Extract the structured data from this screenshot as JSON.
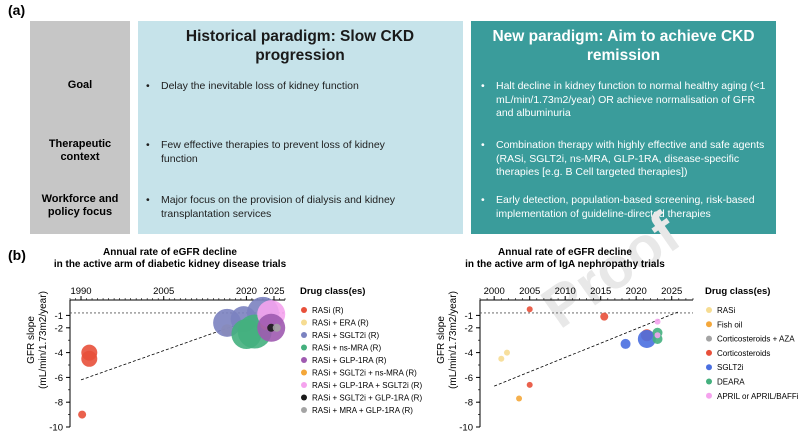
{
  "panel_a": {
    "label": "(a)",
    "historical_header": "Historical paradigm: Slow CKD progression",
    "new_header": "New paradigm: Aim to achieve CKD remission",
    "rows": [
      {
        "label": "Goal",
        "historical": "Delay the inevitable loss of kidney function",
        "new": "Halt decline in kidney function to normal healthy aging (<1 mL/min/1.73m2/year) OR achieve normalisation of GFR and albuminuria"
      },
      {
        "label": "Therapeutic context",
        "historical": "Few effective therapies to prevent loss of kidney function",
        "new": "Combination therapy with highly effective and safe agents (RASi, SGLT2i, ns-MRA, GLP-1RA, disease-specific therapies [e.g. B Cell targeted therapies])"
      },
      {
        "label": "Workforce and policy focus",
        "historical": "Major focus on the provision of dialysis and kidney transplantation services",
        "new": "Early detection, population-based screening, risk-based implementation of guideline-directed therapies"
      }
    ]
  },
  "panel_b": {
    "label": "(b)",
    "watermark": "Proof"
  },
  "chart_data": [
    {
      "type": "scatter",
      "title": "Annual rate of eGFR decline",
      "subtitle": "in the active arm of diabetic kidney disease trials",
      "ylabel": "GFR slope",
      "ylabel2": "(mL/min/1.73m2/year)",
      "xlim": [
        1988,
        2027
      ],
      "ylim": [
        -10,
        0
      ],
      "x_ticks": [
        1990,
        2005,
        2020,
        2025
      ],
      "x_tick_labels": [
        "1990",
        "2005",
        "2020",
        "2025"
      ],
      "y_ticks": [
        -1,
        -2,
        -4,
        -6,
        -8,
        -10
      ],
      "y_tick_labels": [
        "-1",
        "-2",
        "-4",
        "-6",
        "-8",
        "-10"
      ],
      "reference_line_y": -0.8,
      "trend": [
        [
          1990,
          -6.2
        ],
        [
          2025,
          -0.7
        ]
      ],
      "legend_title": "Drug class(es)",
      "legend": [
        {
          "name": "RASi (R)",
          "color": "#e8503a"
        },
        {
          "name": "RASi + ERA (R)",
          "color": "#f6dc92"
        },
        {
          "name": "RASi + SGLT2i (R)",
          "color": "#7b82c0"
        },
        {
          "name": "RASi + ns-MRA (R)",
          "color": "#44b07e"
        },
        {
          "name": "RASi + GLP-1RA (R)",
          "color": "#9f5ab0"
        },
        {
          "name": "RASi + SGLT2i + ns-MRA (R)",
          "color": "#f4a73a"
        },
        {
          "name": "RASi + GLP-1RA + SGLT2i (R)",
          "color": "#f5a3ee"
        },
        {
          "name": "RASi + SGLT2i + GLP-1RA (R)",
          "color": "#1a1a1a"
        },
        {
          "name": "RASi + MRA + GLP-1RA (R)",
          "color": "#a4a4a4"
        }
      ],
      "points": [
        {
          "x": 1990.2,
          "y": -9.0,
          "size": 4,
          "series": "RASi (R)"
        },
        {
          "x": 1991.5,
          "y": -4.0,
          "size": 8,
          "series": "RASi (R)"
        },
        {
          "x": 1991.5,
          "y": -4.5,
          "size": 8,
          "series": "RASi (R)"
        },
        {
          "x": 2016.5,
          "y": -2.2,
          "size": 6,
          "series": "RASi + ERA (R)"
        },
        {
          "x": 2016.5,
          "y": -1.6,
          "size": 14,
          "series": "RASi + SGLT2i (R)"
        },
        {
          "x": 2019.5,
          "y": -1.3,
          "size": 13,
          "series": "RASi + SGLT2i (R)"
        },
        {
          "x": 2023.0,
          "y": -0.8,
          "size": 16,
          "series": "RASi + SGLT2i (R)"
        },
        {
          "x": 2020.0,
          "y": -2.5,
          "size": 15,
          "series": "RASi + ns-MRA (R)"
        },
        {
          "x": 2021.5,
          "y": -2.3,
          "size": 17,
          "series": "RASi + ns-MRA (R)"
        },
        {
          "x": 2023.6,
          "y": -1.7,
          "size": 6,
          "series": "RASi + SGLT2i + ns-MRA (R)"
        },
        {
          "x": 2024.5,
          "y": -0.9,
          "size": 14,
          "series": "RASi + GLP-1RA + SGLT2i (R)"
        },
        {
          "x": 2024.5,
          "y": -2.0,
          "size": 14,
          "series": "RASi + GLP-1RA (R)"
        },
        {
          "x": 2024.5,
          "y": -2.0,
          "size": 4,
          "series": "RASi + SGLT2i + GLP-1RA (R)"
        },
        {
          "x": 2025.5,
          "y": -2.0,
          "size": 4,
          "series": "RASi + MRA + GLP-1RA (R)"
        }
      ]
    },
    {
      "type": "scatter",
      "title": "Annual rate of eGFR decline",
      "subtitle": "in the active arm of IgA nephropathy trials",
      "ylabel": "GFR slope",
      "ylabel2": "(mL/min/1.73m2/year)",
      "xlim": [
        1998,
        2028
      ],
      "ylim": [
        -10,
        0
      ],
      "x_ticks": [
        2000,
        2005,
        2010,
        2015,
        2020,
        2025
      ],
      "x_tick_labels": [
        "2000",
        "2005",
        "2010",
        "2015",
        "2020",
        "2025"
      ],
      "y_ticks": [
        -1,
        -2,
        -4,
        -6,
        -8,
        -10
      ],
      "y_tick_labels": [
        "-1",
        "-2",
        "-4",
        "-6",
        "-8",
        "-10"
      ],
      "reference_line_y": -0.8,
      "trend": [
        [
          2000,
          -6.7
        ],
        [
          2026,
          -0.7
        ]
      ],
      "legend_title": "Drug class(es)",
      "legend": [
        {
          "name": "RASi",
          "color": "#f6dc92"
        },
        {
          "name": "Fish oil",
          "color": "#f4a73a"
        },
        {
          "name": "Corticosteroids + AZA",
          "color": "#a4a4a4"
        },
        {
          "name": "Corticosteroids",
          "color": "#e8503a"
        },
        {
          "name": "SGLT2i",
          "color": "#4a6fe0"
        },
        {
          "name": "DEARA",
          "color": "#44b07e"
        },
        {
          "name": "APRIL or APRIL/BAFFi",
          "color": "#f5a3ee"
        }
      ],
      "points": [
        {
          "x": 2001.0,
          "y": -4.5,
          "size": 3,
          "series": "RASi"
        },
        {
          "x": 2001.8,
          "y": -4.0,
          "size": 3,
          "series": "RASi"
        },
        {
          "x": 2003.5,
          "y": -7.7,
          "size": 3,
          "series": "Fish oil"
        },
        {
          "x": 2005.0,
          "y": -0.5,
          "size": 3,
          "series": "Corticosteroids"
        },
        {
          "x": 2005.0,
          "y": -6.6,
          "size": 3,
          "series": "Corticosteroids"
        },
        {
          "x": 2015.5,
          "y": -1.1,
          "size": 4,
          "series": "Corticosteroids"
        },
        {
          "x": 2018.5,
          "y": -3.3,
          "size": 5,
          "series": "SGLT2i"
        },
        {
          "x": 2021.5,
          "y": -2.6,
          "size": 6,
          "series": "Corticosteroids"
        },
        {
          "x": 2021.5,
          "y": -2.9,
          "size": 9,
          "series": "SGLT2i"
        },
        {
          "x": 2023.0,
          "y": -2.4,
          "size": 5,
          "series": "DEARA"
        },
        {
          "x": 2023.0,
          "y": -2.9,
          "size": 5,
          "series": "DEARA"
        },
        {
          "x": 2023.0,
          "y": -1.5,
          "size": 3,
          "series": "APRIL or APRIL/BAFFi"
        },
        {
          "x": 2023.0,
          "y": -2.6,
          "size": 3,
          "series": "APRIL or APRIL/BAFFi"
        }
      ]
    }
  ]
}
